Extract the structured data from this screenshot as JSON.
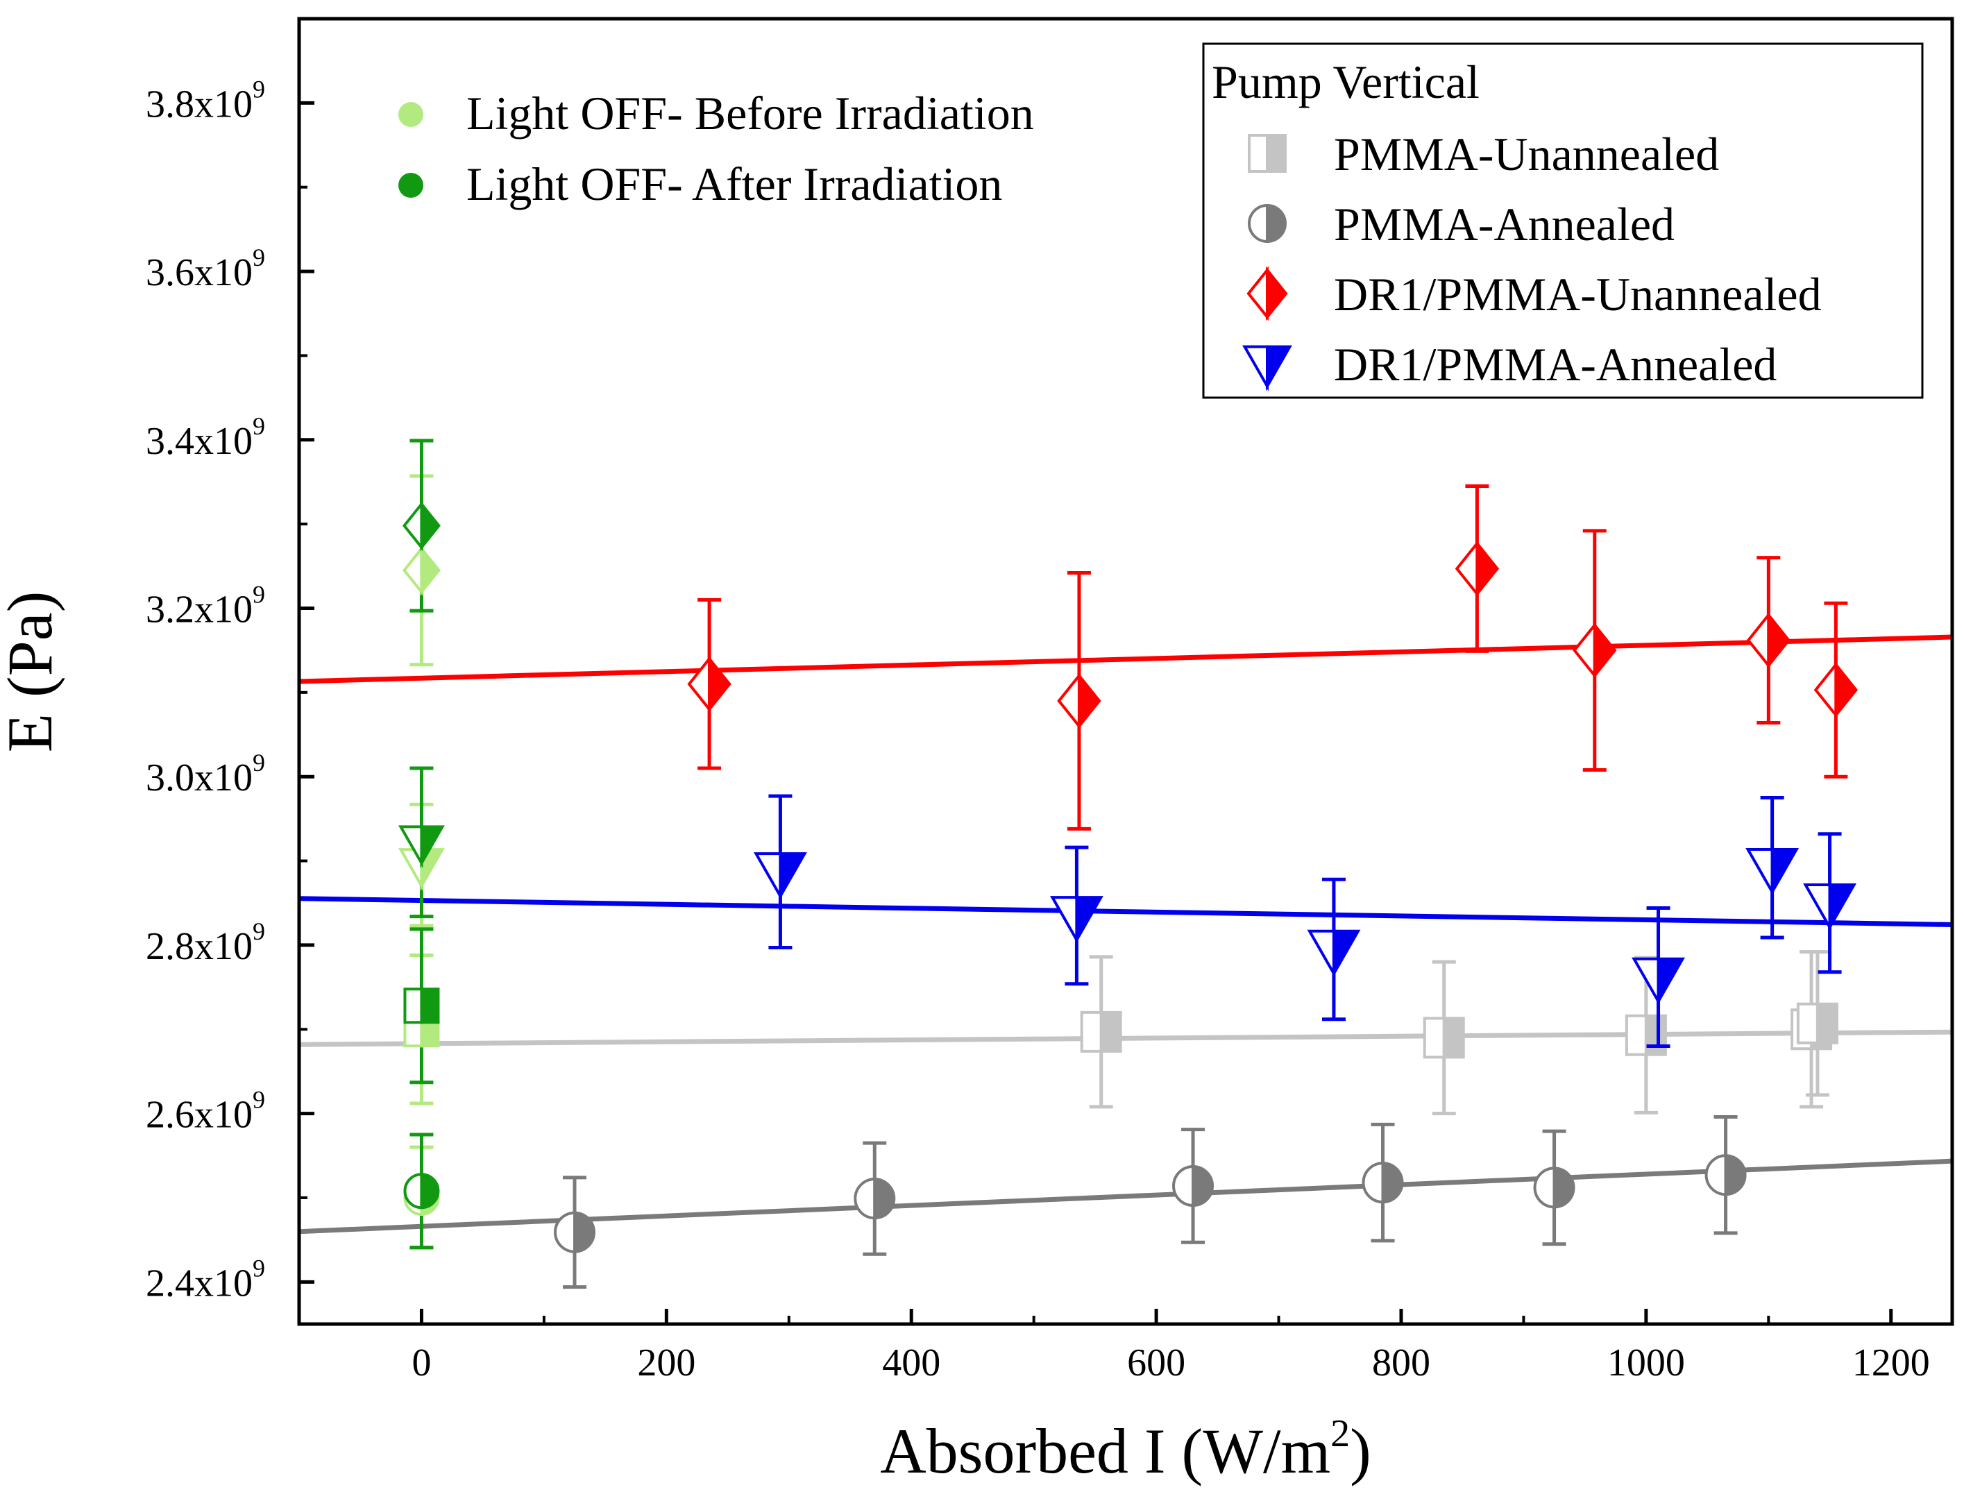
{
  "chart_data": {
    "type": "scatter",
    "xlabel": "Absorbed I (W/m",
    "xlabel_sup": "2",
    "xlabel_suffix": ")",
    "ylabel": "E (Pa)",
    "xlim": [
      -100,
      1250
    ],
    "ylim": [
      2350000000,
      3900000000
    ],
    "x_ticks": [
      0,
      200,
      400,
      600,
      800,
      1000,
      1200
    ],
    "x_tick_labels": [
      "0",
      "200",
      "400",
      "600",
      "800",
      "1000",
      "1200"
    ],
    "y_ticks": [
      2400000000,
      2600000000,
      2800000000,
      3000000000,
      3200000000,
      3400000000,
      3600000000,
      3800000000
    ],
    "y_tick_labels": [
      {
        "base": "2.4x10",
        "exp": "9"
      },
      {
        "base": "2.6x10",
        "exp": "9"
      },
      {
        "base": "2.8x10",
        "exp": "9"
      },
      {
        "base": "3.0x10",
        "exp": "9"
      },
      {
        "base": "3.2x10",
        "exp": "9"
      },
      {
        "base": "3.4x10",
        "exp": "9"
      },
      {
        "base": "3.6x10",
        "exp": "9"
      },
      {
        "base": "3.8x10",
        "exp": "9"
      }
    ],
    "grid": false,
    "legend_title": "Pump Vertical",
    "legend_placement": "top-right",
    "green_legend_placement": "top-left",
    "green_legend": [
      {
        "name": "Light OFF- Before Irradiation",
        "color": "#b3ea7f"
      },
      {
        "name": "Light OFF- After Irradiation",
        "color": "#119a11"
      }
    ],
    "series": [
      {
        "name": "PMMA-Unannealed",
        "marker": "square",
        "color": "#c4c4c4",
        "points": [
          {
            "x": 555,
            "y": 2697000000,
            "err": 89000000
          },
          {
            "x": 835,
            "y": 2690000000,
            "err": 90000000
          },
          {
            "x": 1000,
            "y": 2693000000,
            "err": 92000000
          },
          {
            "x": 1135,
            "y": 2700000000,
            "err": 92000000
          },
          {
            "x": 1140,
            "y": 2707000000,
            "err": 85000000
          }
        ],
        "fit": {
          "intercept": 2683000000,
          "slope": 11000
        }
      },
      {
        "name": "PMMA-Annealed",
        "marker": "circle",
        "color": "#7a7a7a",
        "points": [
          {
            "x": 125,
            "y": 2459000000,
            "err": 65000000
          },
          {
            "x": 370,
            "y": 2499000000,
            "err": 66000000
          },
          {
            "x": 630,
            "y": 2514000000,
            "err": 67000000
          },
          {
            "x": 785,
            "y": 2518000000,
            "err": 69000000
          },
          {
            "x": 925,
            "y": 2512000000,
            "err": 67000000
          },
          {
            "x": 1065,
            "y": 2527000000,
            "err": 69000000
          }
        ],
        "fit": {
          "intercept": 2466000000,
          "slope": 62000
        }
      },
      {
        "name": "DR1/PMMA-Unannealed",
        "marker": "diamond",
        "color": "#ff0000",
        "points": [
          {
            "x": 235,
            "y": 3110000000,
            "err": 100000000
          },
          {
            "x": 537,
            "y": 3090000000,
            "err": 152000000
          },
          {
            "x": 862,
            "y": 3247000000,
            "err": 98000000
          },
          {
            "x": 958,
            "y": 3150000000,
            "err": 142000000
          },
          {
            "x": 1100,
            "y": 3162000000,
            "err": 98000000
          },
          {
            "x": 1155,
            "y": 3103000000,
            "err": 103000000
          }
        ],
        "fit": {
          "intercept": 3117000000,
          "slope": 39000
        }
      },
      {
        "name": "DR1/PMMA-Annealed",
        "marker": "triangle-down",
        "color": "#0000ee",
        "points": [
          {
            "x": 293,
            "y": 2887000000,
            "err": 90000000
          },
          {
            "x": 535,
            "y": 2835000000,
            "err": 81000000
          },
          {
            "x": 745,
            "y": 2795000000,
            "err": 83000000
          },
          {
            "x": 1010,
            "y": 2762000000,
            "err": 82000000
          },
          {
            "x": 1103,
            "y": 2892000000,
            "err": 83000000
          },
          {
            "x": 1150,
            "y": 2850000000,
            "err": 82000000
          }
        ],
        "fit": {
          "intercept": 2853000000,
          "slope": -23000
        }
      }
    ],
    "light_off_points": [
      {
        "state": "before",
        "marker": "diamond",
        "x": 0,
        "y": 3245000000,
        "err": 112000000
      },
      {
        "state": "after",
        "marker": "diamond",
        "x": 0,
        "y": 3298000000,
        "err": 101000000
      },
      {
        "state": "before",
        "marker": "triangle-down",
        "x": 0,
        "y": 2895000000,
        "err": 72000000
      },
      {
        "state": "after",
        "marker": "triangle-down",
        "x": 0,
        "y": 2922000000,
        "err": 88000000
      },
      {
        "state": "before",
        "marker": "square",
        "x": 0,
        "y": 2700000000,
        "err": 88000000
      },
      {
        "state": "after",
        "marker": "square",
        "x": 0,
        "y": 2728000000,
        "err": 91000000
      },
      {
        "state": "before",
        "marker": "circle",
        "x": 0,
        "y": 2500000000,
        "err": 60000000
      },
      {
        "state": "after",
        "marker": "circle",
        "x": 0,
        "y": 2508000000,
        "err": 67000000
      }
    ]
  }
}
